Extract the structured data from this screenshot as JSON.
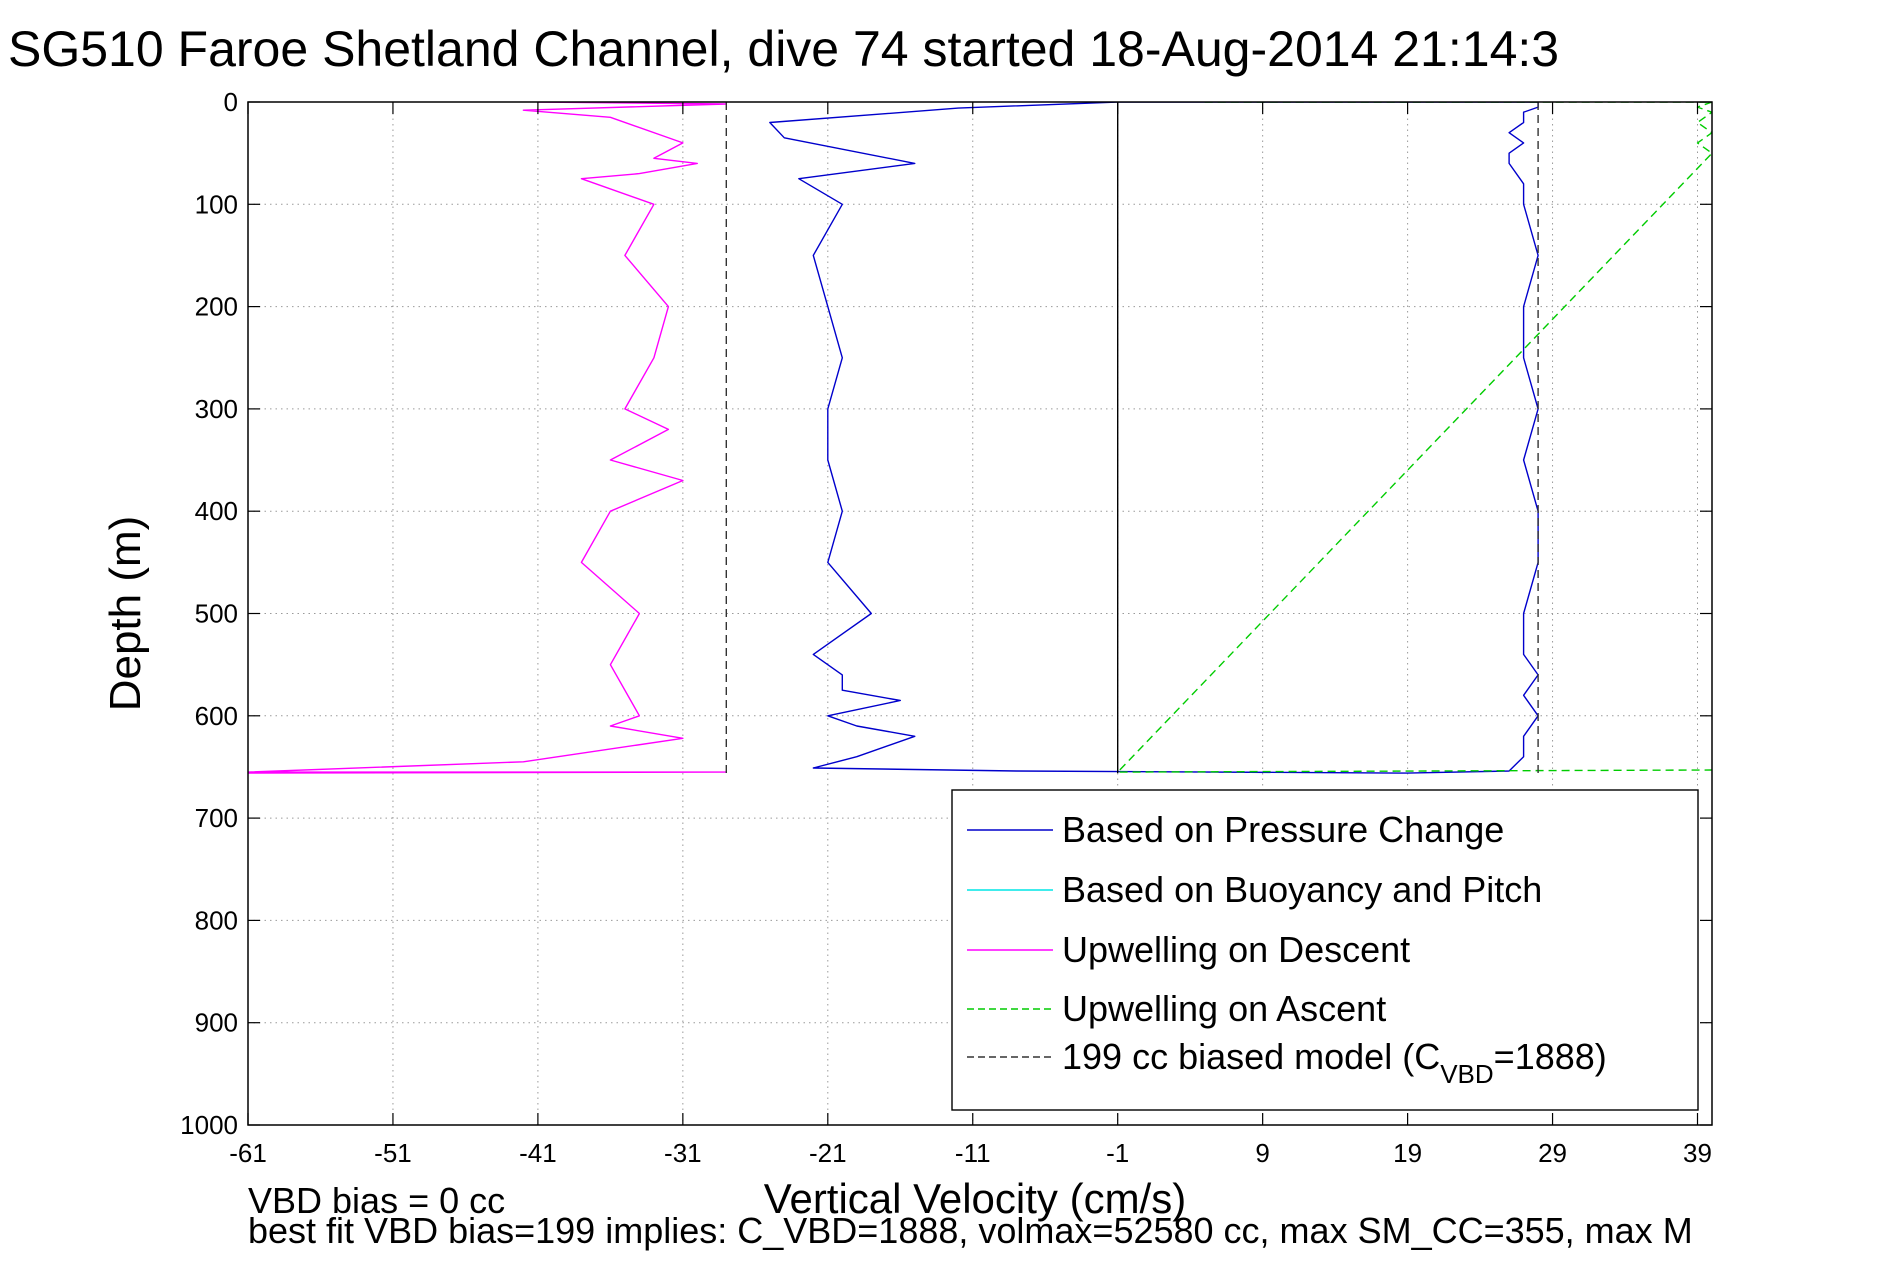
{
  "chart_data": {
    "type": "line",
    "title": "SG510 Faroe Shetland Channel, dive 74 started 18-Aug-2014 21:14:3",
    "xlabel": "Vertical Velocity (cm/s)",
    "ylabel": "Depth (m)",
    "xlim": [
      -61,
      40
    ],
    "ylim": [
      1000,
      0
    ],
    "y_reversed": true,
    "grid": true,
    "xticks": [
      -61,
      -51,
      -41,
      -31,
      -21,
      -11,
      -1,
      9,
      19,
      29,
      39
    ],
    "yticks": [
      0,
      100,
      200,
      300,
      400,
      500,
      600,
      700,
      800,
      900,
      1000
    ],
    "legend_position": "lower-right",
    "legend": [
      {
        "label": "Based on Pressure Change",
        "color": "#0000cc",
        "dash": "solid"
      },
      {
        "label": "Based on Buoyancy and Pitch",
        "color": "#00e5e5",
        "dash": "solid"
      },
      {
        "label": "Upwelling on Descent",
        "color": "#ff00ff",
        "dash": "solid"
      },
      {
        "label": "Upwelling on Ascent",
        "color": "#00cc00",
        "dash": "dashed"
      },
      {
        "label_prefix": "199 cc biased model (C",
        "label_sub": "VBD",
        "label_suffix": "=1888)",
        "color": "#333333",
        "dash": "dashed"
      }
    ],
    "series": [
      {
        "name": "Based on Pressure Change",
        "color": "#0000cc",
        "style": "solid",
        "x": [
          -1,
          -12,
          -25,
          -24,
          -15,
          -23,
          -20,
          -22,
          -21,
          -20,
          -21,
          -21,
          -20,
          -21,
          -18,
          -22,
          -20,
          -20,
          -16,
          -21,
          -19,
          -15,
          -19,
          -22,
          -8,
          19,
          26,
          27,
          27,
          28,
          27,
          28,
          27,
          27,
          28,
          28,
          27,
          28,
          27,
          27,
          28,
          27,
          27,
          26,
          26,
          27,
          26,
          27,
          27,
          28,
          28,
          23,
          19,
          5,
          -1
        ],
        "y": [
          0,
          6,
          20,
          35,
          60,
          75,
          100,
          150,
          200,
          250,
          300,
          350,
          400,
          450,
          500,
          540,
          560,
          575,
          585,
          600,
          610,
          620,
          640,
          651,
          654,
          656,
          654,
          640,
          620,
          600,
          580,
          560,
          540,
          500,
          450,
          400,
          350,
          300,
          250,
          200,
          150,
          100,
          80,
          60,
          50,
          40,
          30,
          20,
          10,
          5,
          0,
          0,
          0,
          0,
          0
        ]
      },
      {
        "name": "Upwelling on Descent",
        "color": "#ff00ff",
        "style": "solid",
        "x": [
          -41,
          -28,
          -42,
          -36,
          -31,
          -33,
          -30,
          -34,
          -38,
          -33,
          -35,
          -32,
          -33,
          -35,
          -32,
          -36,
          -31,
          -36,
          -38,
          -34,
          -36,
          -34,
          -36,
          -31,
          -42,
          -61,
          -28,
          -61
        ],
        "y": [
          0,
          2,
          8,
          15,
          40,
          55,
          60,
          70,
          75,
          100,
          150,
          200,
          250,
          300,
          320,
          350,
          370,
          400,
          450,
          500,
          550,
          600,
          610,
          622,
          645,
          655,
          655,
          656
        ]
      },
      {
        "name": "Upwelling on Ascent",
        "color": "#00cc00",
        "style": "dashed",
        "x": [
          5,
          40,
          39,
          40,
          39,
          40,
          39,
          40,
          -1,
          40
        ],
        "y": [
          0,
          0,
          5,
          10,
          20,
          30,
          40,
          50,
          655,
          653
        ]
      },
      {
        "name": "199 cc biased model (C_VBD=1888)",
        "color": "#333333",
        "style": "dashed",
        "x": [
          -28,
          -28
        ],
        "y": [
          0,
          656
        ]
      },
      {
        "name": "199 cc biased model (C_VBD=1888)",
        "color": "#333333",
        "style": "dashed",
        "x": [
          28,
          28
        ],
        "y": [
          0,
          656
        ]
      },
      {
        "name": "",
        "color": "#000000",
        "style": "solid",
        "x": [
          -1,
          -1
        ],
        "y": [
          0,
          656
        ]
      }
    ]
  },
  "notes": {
    "line1": "VBD bias = 0 cc",
    "line2": "best fit VBD bias=199 implies: C_VBD=1888, volmax=52580 cc, max SM_CC=355, max M"
  }
}
